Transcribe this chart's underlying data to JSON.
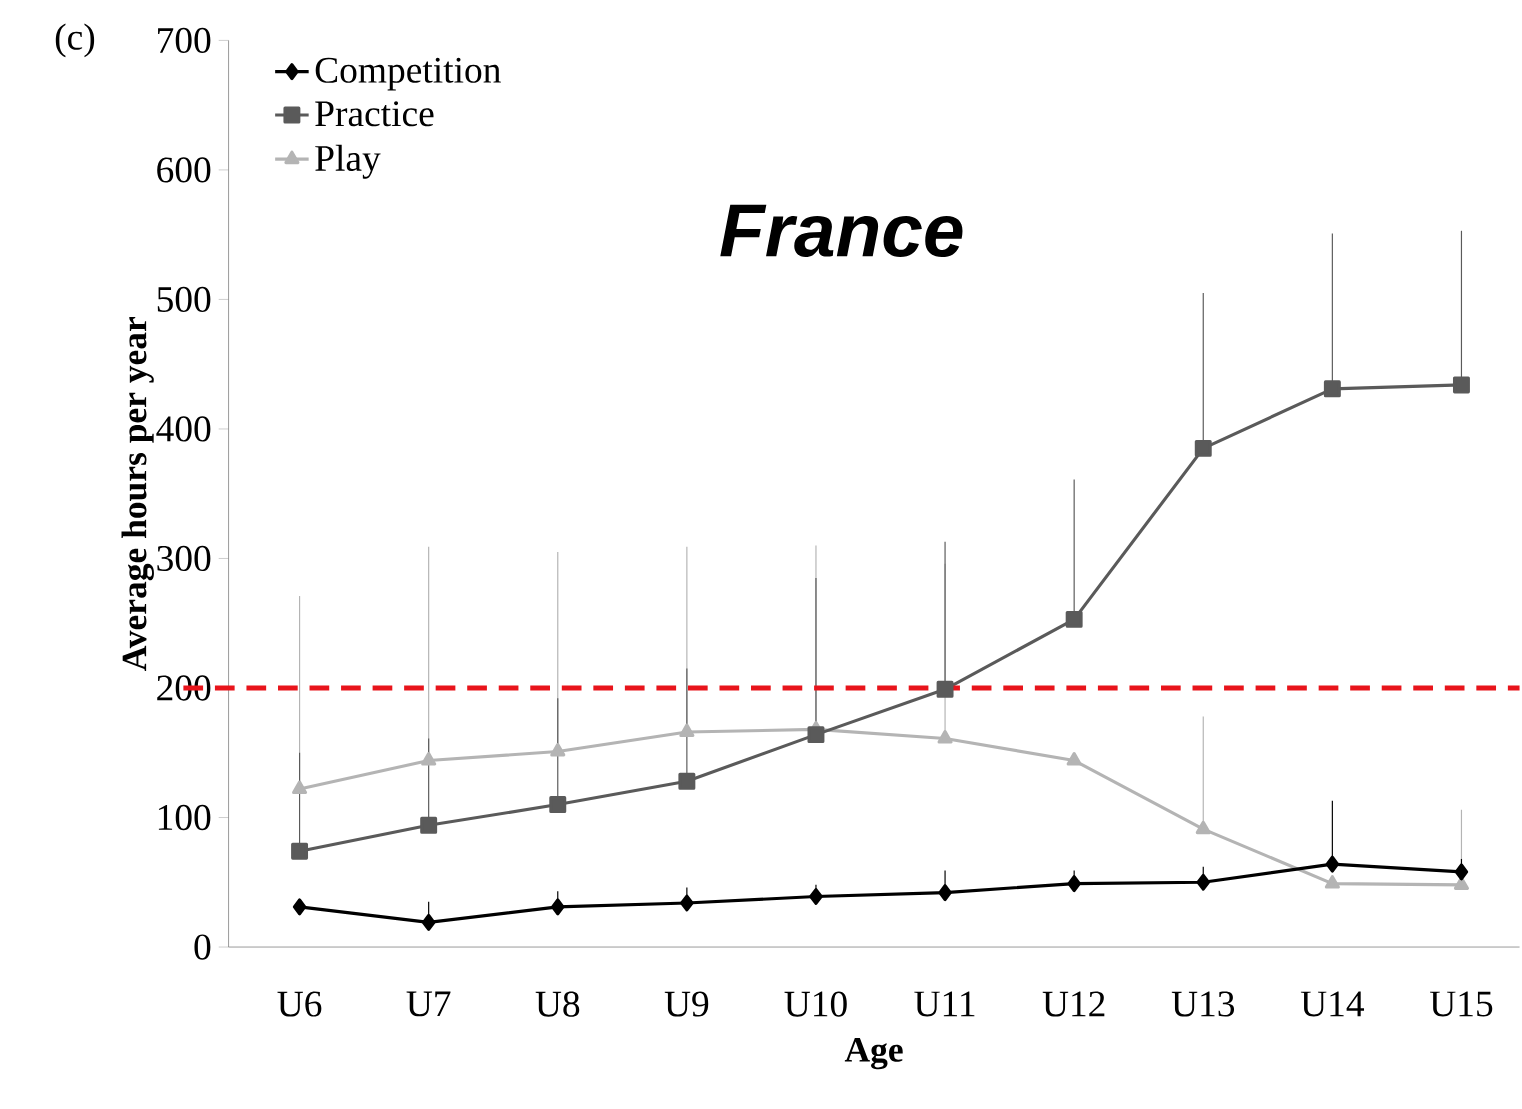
{
  "chart_data": {
    "type": "line",
    "title": "France",
    "xlabel": "Age",
    "ylabel": "Average hours per year",
    "annotations": [
      "(c)"
    ],
    "categories": [
      "U6",
      "U7",
      "U8",
      "U9",
      "U10",
      "U11",
      "U12",
      "U13",
      "U14",
      "U15"
    ],
    "series": [
      {
        "name": "Competition",
        "color": "#000000",
        "marker": "diamond",
        "values": [
          31,
          19,
          31,
          34,
          39,
          42,
          49,
          50,
          64,
          58
        ],
        "errors": [
          null,
          [
            19,
            35
          ],
          [
            31,
            43
          ],
          [
            34,
            46
          ],
          [
            39,
            48
          ],
          [
            42,
            59
          ],
          [
            49,
            59
          ],
          [
            50,
            62
          ],
          [
            64,
            113
          ],
          [
            58,
            68
          ]
        ]
      },
      {
        "name": "Practice",
        "color": "#5a5a5a",
        "marker": "square",
        "values": [
          74,
          94,
          110,
          128,
          164,
          199,
          253,
          385,
          431,
          434
        ],
        "errors": [
          [
            74,
            150
          ],
          [
            94,
            161
          ],
          [
            110,
            192
          ],
          [
            128,
            215
          ],
          [
            164,
            285
          ],
          [
            199,
            313
          ],
          [
            253,
            361
          ],
          [
            385,
            505
          ],
          [
            431,
            551
          ],
          [
            434,
            553
          ]
        ]
      },
      {
        "name": "Play",
        "color": "#b4b4b4",
        "marker": "triangle",
        "values": [
          122,
          144,
          151,
          166,
          168,
          161,
          144,
          91,
          49,
          48
        ],
        "errors": [
          [
            122,
            271
          ],
          [
            144,
            309
          ],
          [
            151,
            305
          ],
          [
            166,
            309
          ],
          [
            168,
            310
          ],
          [
            161,
            296
          ],
          null,
          [
            91,
            178
          ],
          null,
          [
            48,
            106
          ]
        ]
      }
    ],
    "ylim": [
      0,
      700
    ],
    "yticks": [
      0,
      100,
      200,
      300,
      400,
      500,
      600,
      700
    ],
    "ref_lines": [
      {
        "axis": "y",
        "value": 200,
        "color": "#e8141b",
        "line_style": "dashed"
      }
    ],
    "grid": false,
    "legend": "top left"
  }
}
